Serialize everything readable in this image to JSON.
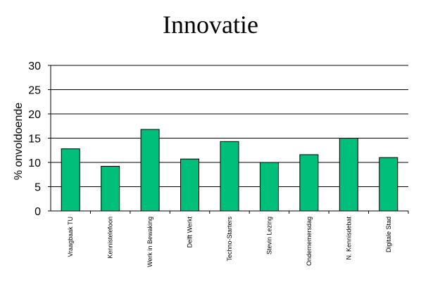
{
  "chart_data": {
    "type": "bar",
    "title": "Innovatie",
    "ylabel": "% onvoldoende",
    "xlabel": "",
    "categories": [
      "Vraagbaak TU",
      "Kennistelefoon",
      "Werk in Bewaking",
      "Delft Werkt",
      "Techno-Starters",
      "Stevin Lezing",
      "Ondernemersdag",
      "N. Kennisdebat",
      "Digitale Stad"
    ],
    "values": [
      12.8,
      9.2,
      16.8,
      10.7,
      14.3,
      10.0,
      11.6,
      15.0,
      11.0
    ],
    "ylim": [
      0,
      30
    ],
    "yticks": [
      0,
      5,
      10,
      15,
      20,
      25,
      30
    ],
    "grid": true,
    "legend": "none",
    "colors": {
      "bar": "#00BF7A",
      "bar_stroke": "#000000",
      "grid": "#000000"
    }
  }
}
